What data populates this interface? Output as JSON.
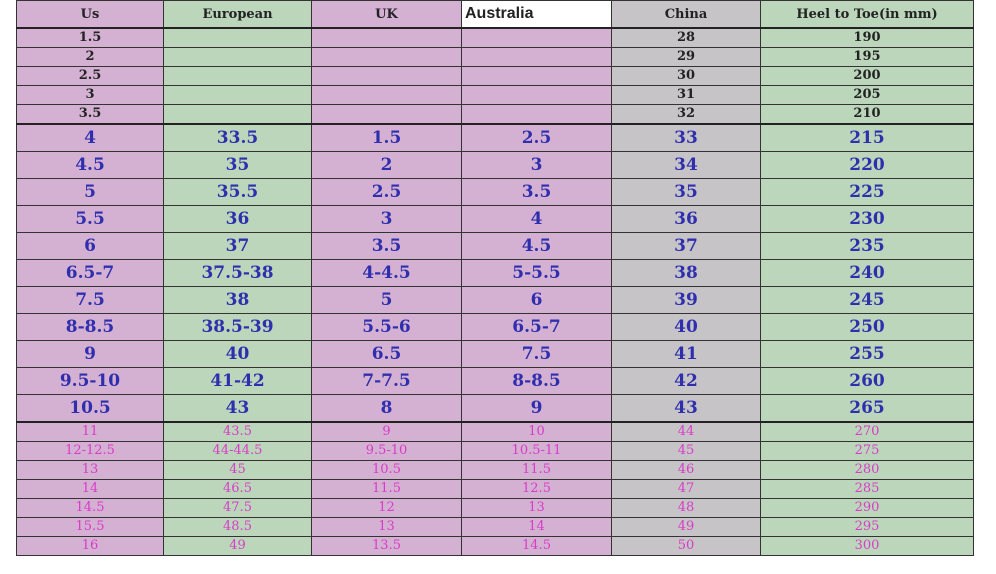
{
  "headers": [
    "Us",
    "European",
    "UK",
    "Australia",
    "China",
    "Heel to Toe(in mm)"
  ],
  "colors": {
    "purple": "#d4b0d2",
    "green": "#bcd6bc",
    "gray": "#c6c4c6",
    "blue_text": "#2f2fae",
    "pink_text": "#d83cc8"
  },
  "groups": [
    {
      "style": "small",
      "rows": [
        [
          "1.5",
          "",
          "",
          "",
          "28",
          "190"
        ],
        [
          "2",
          "",
          "",
          "",
          "29",
          "195"
        ],
        [
          "2.5",
          "",
          "",
          "",
          "30",
          "200"
        ],
        [
          "3",
          "",
          "",
          "",
          "31",
          "205"
        ],
        [
          "3.5",
          "",
          "",
          "",
          "32",
          "210"
        ]
      ]
    },
    {
      "style": "medium",
      "rows": [
        [
          "4",
          "33.5",
          "1.5",
          "2.5",
          "33",
          "215"
        ],
        [
          "4.5",
          "35",
          "2",
          "3",
          "34",
          "220"
        ],
        [
          "5",
          "35.5",
          "2.5",
          "3.5",
          "35",
          "225"
        ],
        [
          "5.5",
          "36",
          "3",
          "4",
          "36",
          "230"
        ],
        [
          "6",
          "37",
          "3.5",
          "4.5",
          "37",
          "235"
        ],
        [
          "6.5-7",
          "37.5-38",
          "4-4.5",
          "5-5.5",
          "38",
          "240"
        ],
        [
          "7.5",
          "38",
          "5",
          "6",
          "39",
          "245"
        ],
        [
          "8-8.5",
          "38.5-39",
          "5.5-6",
          "6.5-7",
          "40",
          "250"
        ],
        [
          "9",
          "40",
          "6.5",
          "7.5",
          "41",
          "255"
        ],
        [
          "9.5-10",
          "41-42",
          "7-7.5",
          "8-8.5",
          "42",
          "260"
        ],
        [
          "10.5",
          "43",
          "8",
          "9",
          "43",
          "265"
        ]
      ]
    },
    {
      "style": "large",
      "rows": [
        [
          "11",
          "43.5",
          "9",
          "10",
          "44",
          "270"
        ],
        [
          "12-12.5",
          "44-44.5",
          "9.5-10",
          "10.5-11",
          "45",
          "275"
        ],
        [
          "13",
          "45",
          "10.5",
          "11.5",
          "46",
          "280"
        ],
        [
          "14",
          "46.5",
          "11.5",
          "12.5",
          "47",
          "285"
        ],
        [
          "14.5",
          "47.5",
          "12",
          "13",
          "48",
          "290"
        ],
        [
          "15.5",
          "48.5",
          "13",
          "14",
          "49",
          "295"
        ],
        [
          "16",
          "49",
          "13.5",
          "14.5",
          "50",
          "300"
        ]
      ]
    }
  ]
}
